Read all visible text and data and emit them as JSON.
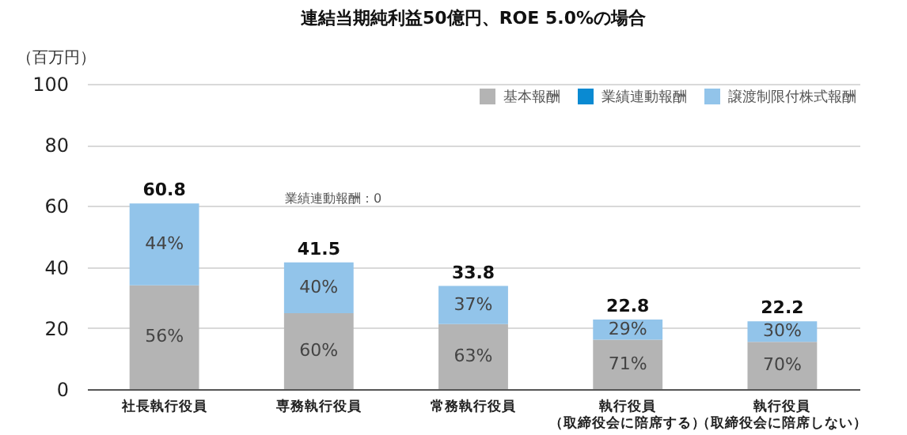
{
  "chart_data": {
    "type": "bar",
    "title": "連結当期純利益50億円、ROE 5.0%の場合",
    "ylabel": "（百万円）",
    "categories": [
      "社長執行役員",
      "専務執行役員",
      "常務執行役員",
      "執行役員（取締役会に陪席する）",
      "執行役員（取締役会に陪席しない）"
    ],
    "stacked": true,
    "ylim": [
      0,
      100
    ],
    "yticks": [
      0,
      20,
      40,
      60,
      80,
      100
    ],
    "grid": "y",
    "legend": "top right",
    "series": [
      {
        "name": "基本報酬",
        "color": "#b4b4b4",
        "values": [
          34.0,
          24.9,
          21.3,
          16.2,
          15.5
        ]
      },
      {
        "name": "業績連動報酬",
        "color": "#0a8ad2",
        "values": [
          0,
          0,
          0,
          0,
          0
        ]
      },
      {
        "name": "譲渡制限付株式報酬",
        "color": "#92c4ea",
        "values": [
          26.8,
          16.6,
          12.5,
          6.6,
          6.7
        ]
      }
    ],
    "totals": [
      "60.8",
      "41.5",
      "33.8",
      "22.8",
      "22.2"
    ],
    "annotations": [
      "業績連動報酬：0",
      {
        "text": "56%",
        "x": "社長執行役員",
        "y": 34.0
      },
      {
        "text": "60%",
        "x": "専務執行役員",
        "y": 24.9
      },
      {
        "text": "63%",
        "x": "常務執行役員",
        "y": 21.3
      },
      {
        "text": "71%",
        "x": "執行役員（取締役会に陪席する）",
        "y": 16.2
      },
      {
        "text": "70%",
        "x": "執行役員（取締役会に陪席しない）",
        "y": 15.5
      },
      {
        "text": "44%",
        "x": "社長執行役員",
        "y": 60.8
      },
      {
        "text": "40%",
        "x": "専務執行役員",
        "y": 41.5
      },
      {
        "text": "37%",
        "x": "常務執行役員",
        "y": 33.8
      },
      {
        "text": "29%",
        "x": "執行役員（取締役会に陪席する）",
        "y": 22.8
      },
      {
        "text": "30%",
        "x": "執行役員（取締役会に陪席しない）",
        "y": 22.2
      }
    ]
  }
}
